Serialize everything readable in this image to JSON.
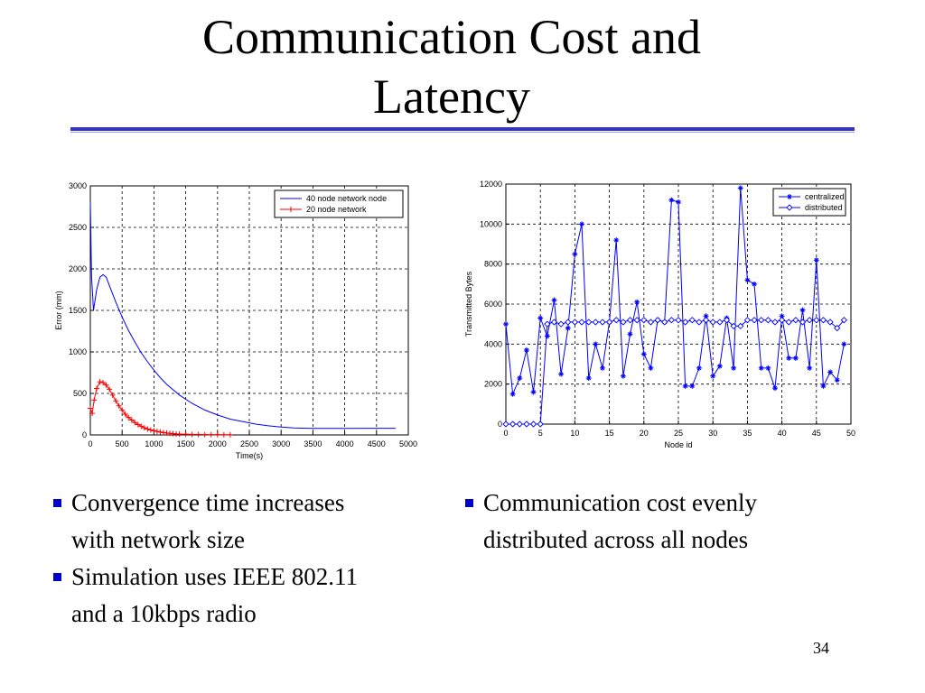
{
  "slide": {
    "title_line1": "Communication Cost and",
    "title_line2": "Latency",
    "page_number": "34"
  },
  "colors": {
    "title_rule": "#3333cc",
    "bullet": "#0000cc",
    "series_blue": "#0000ff",
    "series_red": "#ff0000"
  },
  "bullets_left": [
    {
      "line1": "Convergence time increases",
      "line2": "with network size"
    },
    {
      "line1": "Simulation uses IEEE 802.11",
      "line2": "and a 10kbps radio"
    }
  ],
  "bullets_right": [
    {
      "line1": "Communication cost evenly",
      "line2": "distributed across all nodes"
    }
  ],
  "chart_data": [
    {
      "type": "line",
      "xlabel": "Time(s)",
      "ylabel": "Error (mm)",
      "xlim": [
        0,
        5000
      ],
      "ylim": [
        0,
        3000
      ],
      "x_ticks": [
        0,
        500,
        1000,
        1500,
        2000,
        2500,
        3000,
        3500,
        4000,
        4500,
        5000
      ],
      "y_ticks": [
        0,
        500,
        1000,
        1500,
        2000,
        2500,
        3000
      ],
      "grid": true,
      "legend_position": "top-right",
      "series": [
        {
          "name": "40 node network node",
          "color": "#0000ff",
          "marker": "none",
          "x": [
            0,
            20,
            50,
            100,
            150,
            200,
            250,
            300,
            400,
            500,
            600,
            700,
            800,
            900,
            1000,
            1100,
            1200,
            1400,
            1600,
            1800,
            2000,
            2200,
            2400,
            2600,
            2800,
            3000,
            3200,
            3400,
            3600,
            4000,
            4400,
            4800
          ],
          "y": [
            2800,
            1900,
            1500,
            1750,
            1900,
            1930,
            1900,
            1800,
            1600,
            1420,
            1260,
            1120,
            990,
            880,
            780,
            690,
            610,
            480,
            380,
            300,
            240,
            190,
            160,
            130,
            110,
            95,
            85,
            80,
            78,
            78,
            80,
            80
          ]
        },
        {
          "name": "20 node network",
          "color": "#ff0000",
          "marker": "plus",
          "x": [
            0,
            30,
            60,
            100,
            150,
            200,
            250,
            300,
            350,
            400,
            450,
            500,
            550,
            600,
            650,
            700,
            750,
            800,
            850,
            900,
            950,
            1000,
            1050,
            1100,
            1150,
            1200,
            1250,
            1300,
            1350,
            1400,
            1500,
            1600,
            1700,
            1800,
            1900,
            2000,
            2100,
            2200
          ],
          "y": [
            320,
            260,
            420,
            560,
            640,
            630,
            600,
            550,
            480,
            410,
            350,
            300,
            250,
            210,
            180,
            150,
            125,
            105,
            85,
            70,
            60,
            50,
            42,
            35,
            28,
            23,
            19,
            15,
            12,
            10,
            8,
            6,
            5,
            4,
            3,
            3,
            2,
            2
          ]
        }
      ]
    },
    {
      "type": "line",
      "xlabel": "Node id",
      "ylabel": "Transmitted Bytes",
      "xlim": [
        0,
        50
      ],
      "ylim": [
        0,
        12000
      ],
      "x_ticks": [
        0,
        5,
        10,
        15,
        20,
        25,
        30,
        35,
        40,
        45,
        50
      ],
      "y_ticks": [
        0,
        2000,
        4000,
        6000,
        8000,
        10000,
        12000
      ],
      "grid": true,
      "legend_position": "top-right",
      "series": [
        {
          "name": "centralized",
          "color": "#0000ff",
          "marker": "star",
          "x": [
            0,
            1,
            2,
            3,
            4,
            5,
            6,
            7,
            8,
            9,
            10,
            11,
            12,
            13,
            14,
            15,
            16,
            17,
            18,
            19,
            20,
            21,
            22,
            23,
            24,
            25,
            26,
            27,
            28,
            29,
            30,
            31,
            32,
            33,
            34,
            35,
            36,
            37,
            38,
            39,
            40,
            41,
            42,
            43,
            44,
            45,
            46,
            47,
            48,
            49
          ],
          "y": [
            5000,
            1500,
            2300,
            3700,
            1600,
            5300,
            4400,
            6200,
            2500,
            4800,
            8500,
            10000,
            2300,
            4000,
            2800,
            5100,
            9200,
            2400,
            4500,
            6100,
            3500,
            2800,
            5200,
            5100,
            11200,
            11100,
            1900,
            1900,
            2800,
            5400,
            2400,
            2900,
            5300,
            2800,
            11800,
            7200,
            7000,
            2800,
            2800,
            1800,
            5400,
            3300,
            3300,
            5700,
            2800,
            8200,
            1900,
            2600,
            2200,
            4000
          ]
        },
        {
          "name": "distributed",
          "color": "#0000ff",
          "marker": "diamond",
          "x": [
            0,
            1,
            2,
            3,
            4,
            5,
            6,
            7,
            8,
            9,
            10,
            11,
            12,
            13,
            14,
            15,
            16,
            17,
            18,
            19,
            20,
            21,
            22,
            23,
            24,
            25,
            26,
            27,
            28,
            29,
            30,
            31,
            32,
            33,
            34,
            35,
            36,
            37,
            38,
            39,
            40,
            41,
            42,
            43,
            44,
            45,
            46,
            47,
            48,
            49
          ],
          "y": [
            0,
            0,
            0,
            0,
            0,
            0,
            5000,
            5100,
            5000,
            5100,
            5100,
            5100,
            5100,
            5100,
            5100,
            5100,
            5200,
            5100,
            5200,
            5200,
            5200,
            5100,
            5200,
            5100,
            5200,
            5200,
            5100,
            5200,
            5100,
            5200,
            5100,
            5100,
            5200,
            4900,
            4900,
            5200,
            5200,
            5200,
            5200,
            5100,
            5200,
            5100,
            5200,
            5100,
            5200,
            5200,
            5200,
            5100,
            4800,
            5200
          ]
        }
      ]
    }
  ]
}
